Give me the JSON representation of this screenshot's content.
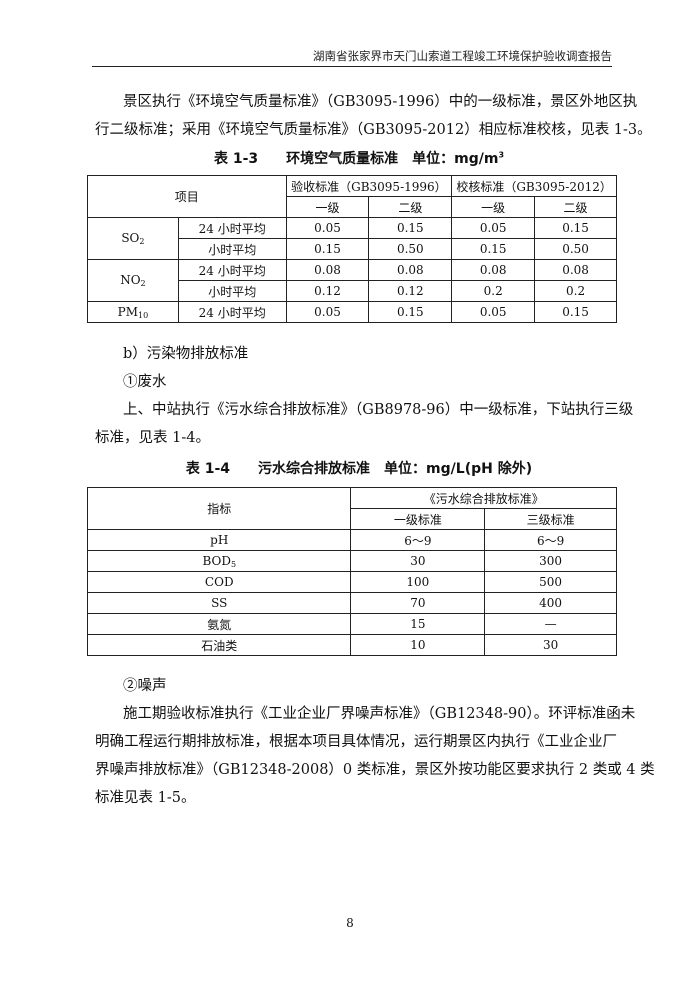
{
  "header": "湖南省张家界市天门山索道工程竣工环境保护验收调查报告",
  "para1": [
    "景区执行《环境空气质量标准》（GB3095-1996）中的一级标准，景区外地区执",
    "行二级标准；采用《环境空气质量标准》（GB3095-2012）相应标准校核，见表 1-3。"
  ],
  "table1": {
    "caption_no": "表 1-3",
    "caption_title": "环境空气质量标准",
    "caption_unit": "单位：mg/m",
    "caption_unit_sup": "3",
    "head_item": "项目",
    "head_group1": "验收标准（GB3095-1996）",
    "head_group2": "校核标准（GB3095-2012）",
    "head_sub": [
      "一级",
      "二级",
      "一级",
      "二级"
    ],
    "rows": [
      {
        "pollutant": "SO",
        "sub": "2",
        "period": "24 小时平均",
        "values": [
          "0.05",
          "0.15",
          "0.05",
          "0.15"
        ]
      },
      {
        "period": "小时平均",
        "values": [
          "0.15",
          "0.50",
          "0.15",
          "0.50"
        ]
      },
      {
        "pollutant": "NO",
        "sub": "2",
        "period": "24 小时平均",
        "values": [
          "0.08",
          "0.08",
          "0.08",
          "0.08"
        ]
      },
      {
        "period": "小时平均",
        "values": [
          "0.12",
          "0.12",
          "0.2",
          "0.2"
        ]
      },
      {
        "pollutant": "PM",
        "sub": "10",
        "period": "24 小时平均",
        "values": [
          "0.05",
          "0.15",
          "0.05",
          "0.15"
        ]
      }
    ]
  },
  "section_b": "b）污染物排放标准",
  "sub1": "①废水",
  "para2": [
    "上、中站执行《污水综合排放标准》（GB8978-96）中一级标准，下站执行三级",
    "标准，见表 1-4。"
  ],
  "table2": {
    "caption_no": "表 1-4",
    "caption_title": "污水综合排放标准",
    "caption_unit": "单位：mg/L(pH 除外)",
    "head_item": "指标",
    "head_group": "《污水综合排放标准》",
    "head_sub": [
      "一级标准",
      "三级标准"
    ],
    "rows": [
      {
        "name": "pH",
        "values": [
          "6～9",
          "6～9"
        ]
      },
      {
        "name": "BOD",
        "sub": "5",
        "values": [
          "30",
          "300"
        ]
      },
      {
        "name": "COD",
        "values": [
          "100",
          "500"
        ]
      },
      {
        "name": "SS",
        "values": [
          "70",
          "400"
        ]
      },
      {
        "name": "氨氮",
        "values": [
          "15",
          "—"
        ]
      },
      {
        "name": "石油类",
        "values": [
          "10",
          "30"
        ]
      }
    ]
  },
  "sub2": "②噪声",
  "para3": [
    "施工期验收标准执行《工业企业厂界噪声标准》（GB12348-90）。环评标准函未",
    "明确工程运行期排放标准，根据本项目具体情况，运行期景区内执行《工业企业厂",
    "界噪声排放标准》（GB12348-2008）0 类标准，景区外按功能区要求执行 2 类或 4 类",
    "标准见表 1-5。"
  ],
  "page_number": "8"
}
